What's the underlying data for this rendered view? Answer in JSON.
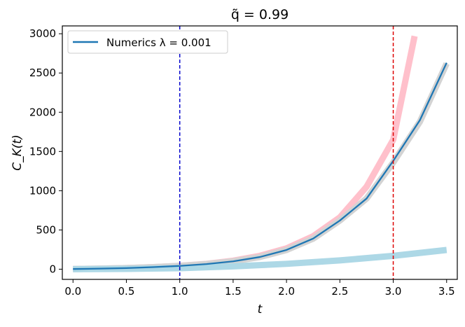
{
  "chart_data": {
    "type": "line",
    "title": "q̃ = 0.99",
    "xlabel": "t",
    "ylabel": "C_K(t)",
    "xlim": [
      -0.1,
      3.6
    ],
    "ylim": [
      -130,
      3100
    ],
    "x_ticks": [
      0.0,
      0.5,
      1.0,
      1.5,
      2.0,
      2.5,
      3.0,
      3.5
    ],
    "x_tick_labels": [
      "0.0",
      "0.5",
      "1.0",
      "1.5",
      "2.0",
      "2.5",
      "3.0",
      "3.5"
    ],
    "y_ticks": [
      0,
      500,
      1000,
      1500,
      2000,
      2500,
      3000
    ],
    "y_tick_labels": [
      "0",
      "500",
      "1000",
      "1500",
      "2000",
      "2500",
      "3000"
    ],
    "grid": false,
    "legend_position": "top-left",
    "series": [
      {
        "color": "#ffc0cb",
        "style": "thick",
        "x": [
          0.0,
          0.25,
          0.5,
          0.75,
          1.0,
          1.25,
          1.5,
          1.75,
          2.0,
          2.25,
          2.5,
          2.75,
          3.0,
          3.2
        ],
        "values": [
          2,
          6,
          14,
          25,
          43,
          68,
          108,
          170,
          265,
          420,
          660,
          1050,
          1650,
          2970
        ]
      },
      {
        "color": "#d3d3d3",
        "style": "thick",
        "x": [
          0.0,
          0.25,
          0.5,
          0.75,
          1.0,
          1.25,
          1.5,
          1.75,
          2.0,
          2.25,
          2.5,
          2.75,
          3.0,
          3.25,
          3.5
        ],
        "values": [
          2,
          7,
          14,
          26,
          42,
          65,
          100,
          155,
          245,
          390,
          620,
          900,
          1360,
          1880,
          2620
        ]
      },
      {
        "color": "#add8e6",
        "style": "thick",
        "x": [
          0.0,
          0.5,
          1.0,
          1.5,
          2.0,
          2.5,
          3.0,
          3.5
        ],
        "values": [
          0,
          4,
          13,
          36,
          68,
          112,
          170,
          245
        ]
      },
      {
        "name": "Numerics λ = 0.001",
        "color": "#1f77b4",
        "style": "thin",
        "x": [
          0.0,
          0.25,
          0.5,
          0.75,
          1.0,
          1.25,
          1.5,
          1.75,
          2.0,
          2.25,
          2.5,
          2.75,
          3.0,
          3.25,
          3.5
        ],
        "values": [
          2,
          7,
          14,
          26,
          42,
          65,
          100,
          155,
          245,
          390,
          620,
          900,
          1380,
          1900,
          2630
        ]
      }
    ],
    "vlines": [
      {
        "x": 1.0,
        "color": "#0000cc"
      },
      {
        "x": 3.0,
        "color": "#dd0000"
      }
    ]
  }
}
